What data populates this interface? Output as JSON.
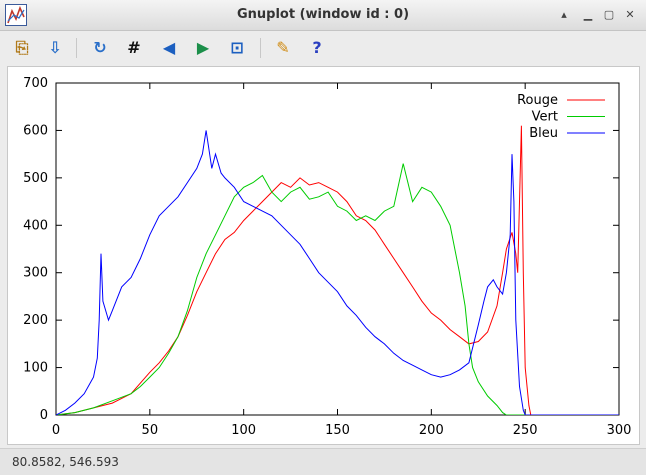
{
  "window": {
    "title": "Gnuplot (window id : 0)"
  },
  "toolbar": {
    "buttons": [
      {
        "name": "copy-clipboard-icon",
        "glyph": "⎘",
        "color": "#b07a1a"
      },
      {
        "name": "export-icon",
        "glyph": "⇩",
        "color": "#2a6fc9"
      },
      {
        "name": "replot-icon",
        "glyph": "↻",
        "color": "#2a6fc9"
      },
      {
        "name": "grid-icon",
        "glyph": "#",
        "color": "#111111"
      },
      {
        "name": "previous-zoom-icon",
        "glyph": "◀",
        "color": "#1c5fc0"
      },
      {
        "name": "next-zoom-icon",
        "glyph": "▶",
        "color": "#1c8f4a"
      },
      {
        "name": "autoscale-icon",
        "glyph": "⊡",
        "color": "#1c5fc0"
      },
      {
        "name": "settings-icon",
        "glyph": "✎",
        "color": "#d08a10"
      },
      {
        "name": "help-icon",
        "glyph": "?",
        "color": "#2a3fc0"
      }
    ]
  },
  "status": {
    "coordinates": "80.8582,  546.593"
  },
  "chart_data": {
    "type": "line",
    "title": "",
    "xlabel": "",
    "ylabel": "",
    "xlim": [
      0,
      300
    ],
    "ylim": [
      0,
      700
    ],
    "xticks": [
      "0",
      "50",
      "100",
      "150",
      "200",
      "250",
      "300"
    ],
    "yticks": [
      "0",
      "100",
      "200",
      "300",
      "400",
      "500",
      "600",
      "700"
    ],
    "legend_position": "top-right",
    "grid": false,
    "series": [
      {
        "name": "Rouge",
        "color": "#ff0000",
        "points": [
          [
            0,
            0
          ],
          [
            10,
            5
          ],
          [
            20,
            15
          ],
          [
            30,
            25
          ],
          [
            40,
            45
          ],
          [
            50,
            90
          ],
          [
            55,
            110
          ],
          [
            60,
            135
          ],
          [
            65,
            165
          ],
          [
            70,
            210
          ],
          [
            75,
            260
          ],
          [
            80,
            300
          ],
          [
            85,
            340
          ],
          [
            90,
            370
          ],
          [
            95,
            385
          ],
          [
            100,
            410
          ],
          [
            105,
            430
          ],
          [
            110,
            450
          ],
          [
            115,
            470
          ],
          [
            120,
            490
          ],
          [
            125,
            480
          ],
          [
            130,
            500
          ],
          [
            135,
            485
          ],
          [
            140,
            490
          ],
          [
            145,
            480
          ],
          [
            150,
            470
          ],
          [
            155,
            450
          ],
          [
            160,
            420
          ],
          [
            165,
            410
          ],
          [
            170,
            390
          ],
          [
            175,
            360
          ],
          [
            180,
            330
          ],
          [
            185,
            300
          ],
          [
            190,
            270
          ],
          [
            195,
            240
          ],
          [
            200,
            215
          ],
          [
            205,
            200
          ],
          [
            210,
            180
          ],
          [
            215,
            165
          ],
          [
            220,
            150
          ],
          [
            225,
            155
          ],
          [
            230,
            175
          ],
          [
            235,
            230
          ],
          [
            238,
            300
          ],
          [
            240,
            350
          ],
          [
            243,
            385
          ],
          [
            245,
            340
          ],
          [
            246,
            300
          ],
          [
            247,
            450
          ],
          [
            248,
            610
          ],
          [
            249,
            300
          ],
          [
            250,
            100
          ],
          [
            252,
            20
          ],
          [
            253,
            0
          ],
          [
            300,
            0
          ]
        ]
      },
      {
        "name": "Vert",
        "color": "#00cc00",
        "points": [
          [
            0,
            0
          ],
          [
            10,
            5
          ],
          [
            20,
            15
          ],
          [
            30,
            30
          ],
          [
            40,
            45
          ],
          [
            45,
            60
          ],
          [
            50,
            80
          ],
          [
            55,
            100
          ],
          [
            60,
            130
          ],
          [
            65,
            165
          ],
          [
            70,
            220
          ],
          [
            75,
            290
          ],
          [
            80,
            340
          ],
          [
            85,
            380
          ],
          [
            90,
            420
          ],
          [
            95,
            460
          ],
          [
            100,
            480
          ],
          [
            105,
            490
          ],
          [
            110,
            505
          ],
          [
            115,
            470
          ],
          [
            120,
            450
          ],
          [
            125,
            470
          ],
          [
            130,
            480
          ],
          [
            135,
            455
          ],
          [
            140,
            460
          ],
          [
            145,
            470
          ],
          [
            150,
            440
          ],
          [
            155,
            430
          ],
          [
            160,
            410
          ],
          [
            165,
            420
          ],
          [
            170,
            410
          ],
          [
            175,
            430
          ],
          [
            180,
            440
          ],
          [
            185,
            530
          ],
          [
            190,
            450
          ],
          [
            195,
            480
          ],
          [
            200,
            470
          ],
          [
            205,
            440
          ],
          [
            210,
            400
          ],
          [
            215,
            300
          ],
          [
            218,
            230
          ],
          [
            220,
            150
          ],
          [
            222,
            100
          ],
          [
            225,
            70
          ],
          [
            230,
            40
          ],
          [
            235,
            20
          ],
          [
            238,
            5
          ],
          [
            240,
            0
          ],
          [
            300,
            0
          ]
        ]
      },
      {
        "name": "Bleu",
        "color": "#0000ff",
        "points": [
          [
            0,
            0
          ],
          [
            5,
            10
          ],
          [
            10,
            25
          ],
          [
            15,
            45
          ],
          [
            20,
            80
          ],
          [
            22,
            120
          ],
          [
            23,
            200
          ],
          [
            24,
            340
          ],
          [
            25,
            240
          ],
          [
            28,
            200
          ],
          [
            30,
            220
          ],
          [
            35,
            270
          ],
          [
            40,
            290
          ],
          [
            45,
            330
          ],
          [
            50,
            380
          ],
          [
            55,
            420
          ],
          [
            60,
            440
          ],
          [
            65,
            460
          ],
          [
            70,
            490
          ],
          [
            75,
            520
          ],
          [
            78,
            550
          ],
          [
            80,
            600
          ],
          [
            83,
            520
          ],
          [
            85,
            550
          ],
          [
            88,
            510
          ],
          [
            90,
            500
          ],
          [
            95,
            480
          ],
          [
            100,
            450
          ],
          [
            105,
            440
          ],
          [
            110,
            430
          ],
          [
            115,
            420
          ],
          [
            120,
            400
          ],
          [
            125,
            380
          ],
          [
            130,
            360
          ],
          [
            135,
            330
          ],
          [
            140,
            300
          ],
          [
            145,
            280
          ],
          [
            150,
            260
          ],
          [
            155,
            230
          ],
          [
            160,
            210
          ],
          [
            165,
            185
          ],
          [
            170,
            165
          ],
          [
            175,
            150
          ],
          [
            180,
            130
          ],
          [
            185,
            115
          ],
          [
            190,
            105
          ],
          [
            195,
            95
          ],
          [
            200,
            85
          ],
          [
            205,
            80
          ],
          [
            210,
            85
          ],
          [
            215,
            95
          ],
          [
            220,
            110
          ],
          [
            225,
            190
          ],
          [
            228,
            240
          ],
          [
            230,
            270
          ],
          [
            233,
            285
          ],
          [
            235,
            270
          ],
          [
            238,
            255
          ],
          [
            240,
            300
          ],
          [
            242,
            380
          ],
          [
            243,
            550
          ],
          [
            244,
            450
          ],
          [
            245,
            200
          ],
          [
            247,
            60
          ],
          [
            249,
            10
          ],
          [
            250,
            0
          ],
          [
            300,
            0
          ]
        ]
      }
    ]
  }
}
